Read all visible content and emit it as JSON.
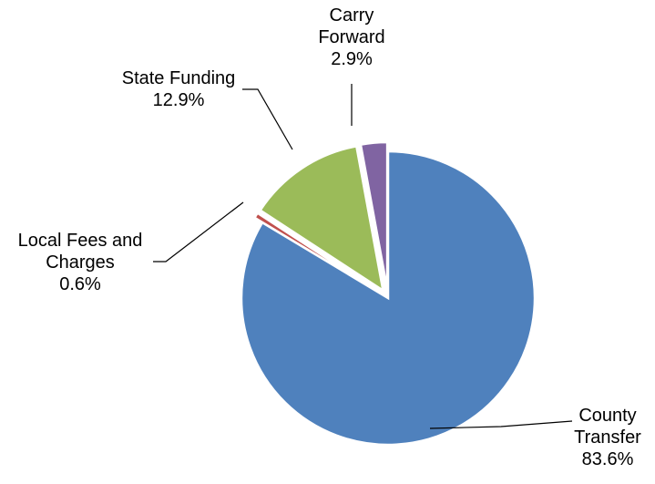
{
  "chart_data": {
    "type": "pie",
    "title": "",
    "slices": [
      {
        "label_lines": [
          "County",
          "Transfer"
        ],
        "pct_label": "83.6%",
        "value": 83.6,
        "color": "#4f81bd"
      },
      {
        "label_lines": [
          "Local Fees and",
          "Charges"
        ],
        "pct_label": "0.6%",
        "value": 0.6,
        "color": "#c0504d"
      },
      {
        "label_lines": [
          "State Funding"
        ],
        "pct_label": "12.9%",
        "value": 12.9,
        "color": "#9bbb59"
      },
      {
        "label_lines": [
          "Carry",
          "Forward"
        ],
        "pct_label": "2.9%",
        "value": 2.9,
        "color": "#8064a2"
      }
    ]
  }
}
